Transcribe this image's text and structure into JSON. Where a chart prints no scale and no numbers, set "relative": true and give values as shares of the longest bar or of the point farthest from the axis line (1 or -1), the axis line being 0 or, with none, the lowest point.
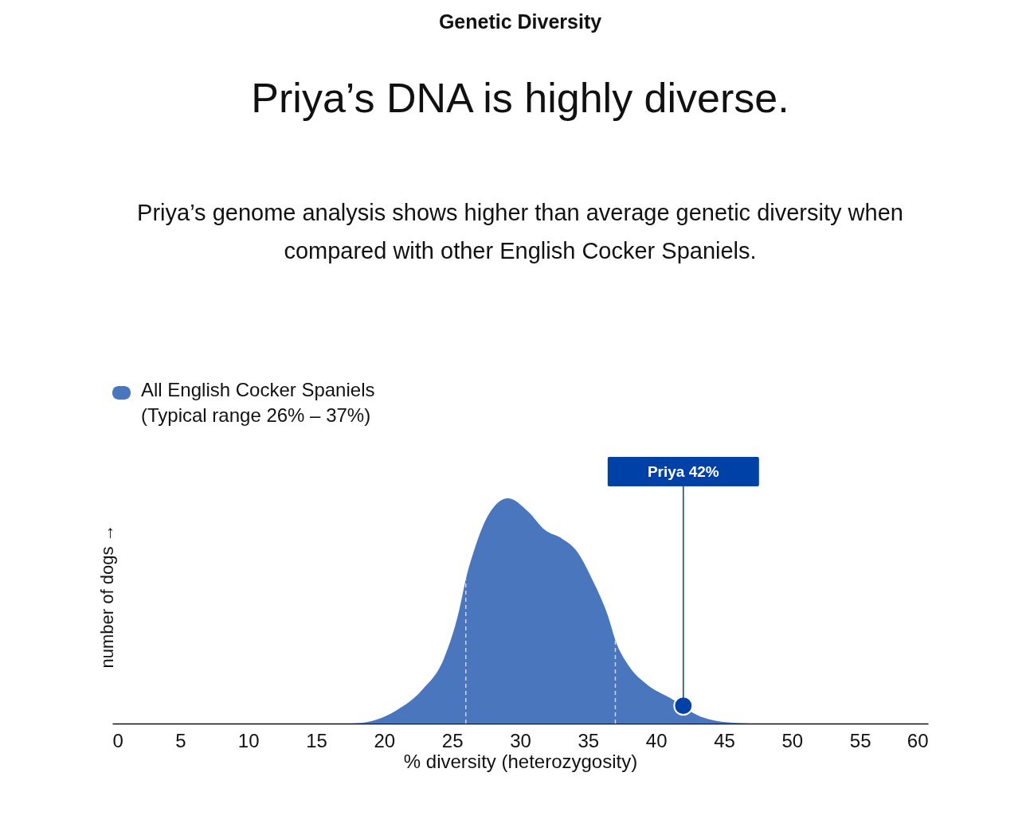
{
  "chart_data": {
    "type": "area",
    "title": "Genetic Diversity",
    "subtitle": "Priya’s DNA is highly diverse.",
    "annotations": [
      "Priya’s genome analysis shows higher than average genetic diversity when\ncompared with other English Cocker Spaniels.",
      {
        "text": "Priya 42%",
        "x": 42,
        "y": 0.079
      }
    ],
    "xlabel": "% diversity (heterozygosity)",
    "ylabel": "number of dogs →",
    "x": [
      17,
      18.1,
      20.8,
      22.8,
      24.4,
      25.5,
      26,
      26.7,
      27.7,
      29.1,
      30.6,
      31.8,
      33.1,
      34.1,
      35.3,
      36.5,
      37,
      38,
      39.4,
      41,
      43.3,
      45.3,
      47
    ],
    "series": [
      {
        "name": "All English Cocker Spaniels\n(Typical range 26% – 37%)",
        "color": "#4a76be",
        "values": [
          0,
          0.002,
          0.055,
          0.15,
          0.29,
          0.5,
          0.64,
          0.785,
          0.93,
          1.0,
          0.94,
          0.86,
          0.82,
          0.77,
          0.64,
          0.47,
          0.37,
          0.255,
          0.17,
          0.115,
          0.03,
          0.005,
          0
        ]
      },
      {
        "type": "scatter",
        "color": "#0041a8",
        "x": [
          42
        ],
        "values": [
          0.079
        ]
      }
    ],
    "relative": true,
    "xlim": [
      0,
      60
    ],
    "xticks": [
      0,
      5,
      10,
      15,
      20,
      25,
      30,
      35,
      40,
      45,
      50,
      55,
      60
    ],
    "ref_lines": [
      {
        "axis": "x",
        "value": 26,
        "color": "#c8d8f4",
        "line_style": "dashed"
      },
      {
        "axis": "x",
        "value": 37,
        "color": "#c8d8f4",
        "line_style": "dashed"
      }
    ],
    "grid": false,
    "legend": "top left"
  }
}
